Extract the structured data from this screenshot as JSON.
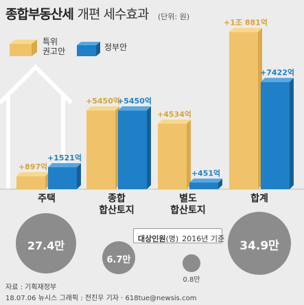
{
  "header": {
    "title": "종합부동산세",
    "subtitle": "개편 세수효과",
    "unit": "(단위: 원)"
  },
  "legend": {
    "advisory": "특위\n권고안",
    "government": "정부안"
  },
  "colors": {
    "advisory": "#f0c36a",
    "government": "#1f7fc7",
    "bubble": "#8c8c8c",
    "background": "#ececec"
  },
  "chart_data": {
    "type": "bar",
    "categories": [
      "주택",
      "종합\n합산토지",
      "별도\n합산토지",
      "합계"
    ],
    "series": [
      {
        "name": "특위 권고안",
        "values": [
          897,
          5450,
          4534,
          10881
        ],
        "labels": [
          "+897억",
          "+5450억",
          "+4534억",
          "+1조 881억"
        ]
      },
      {
        "name": "정부안",
        "values": [
          1521,
          5450,
          451,
          7422
        ],
        "labels": [
          "+1521억",
          "+5450억",
          "+451억",
          "+7422억"
        ]
      }
    ],
    "ylim": [
      0,
      11200
    ]
  },
  "population": {
    "caption": "대상인원",
    "caption_paren": "(명)",
    "caption_year": "2016년 기준",
    "bubbles": [
      {
        "category": "주택",
        "value": "27.4만"
      },
      {
        "category": "종합합산토지",
        "value": "6.7만"
      },
      {
        "category": "별도합산토지",
        "value": "0.8만"
      },
      {
        "category": "합계",
        "value": "34.9만"
      }
    ]
  },
  "footer": {
    "source": "자료 : 기획재정부",
    "credit": "18.07.06 뉴시스 그래픽 : 전진우 기자 · 618tue@newsis.com"
  }
}
